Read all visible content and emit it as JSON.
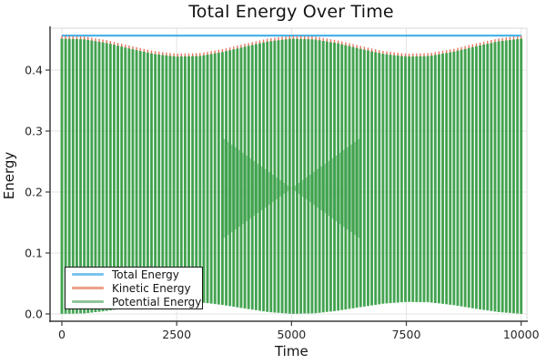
{
  "chart": {
    "title": "Total Energy Over Time",
    "xlabel": "Time",
    "ylabel": "Energy"
  },
  "legend": {
    "items": [
      {
        "label": "Total Energy",
        "color": "#7cc3ee"
      },
      {
        "label": "Kinetic Energy",
        "color": "#eda186"
      },
      {
        "label": "Potential Energy",
        "color": "#90c59a"
      }
    ]
  },
  "axes": {
    "x_ticks": [
      0,
      2500,
      5000,
      7500,
      10000
    ],
    "y_ticks": [
      0.0,
      0.1,
      0.2,
      0.3,
      0.4
    ],
    "xlim": [
      0,
      10000
    ],
    "ylim": [
      -0.015,
      0.469
    ]
  },
  "chart_data": {
    "type": "line",
    "title": "Total Energy Over Time",
    "xlabel": "Time",
    "ylabel": "Energy",
    "x_range": [
      0,
      10000
    ],
    "ylim": [
      0,
      0.47
    ],
    "grid": true,
    "legend_position": "lower-left",
    "beat_period": 5000,
    "series": [
      {
        "name": "Total Energy",
        "color": "#3fafe8",
        "style": "constant-line",
        "value": 0.4565
      },
      {
        "name": "Kinetic Energy",
        "color": "#d96245",
        "style": "fast-oscillation",
        "description": "Oscillates rapidly between envelope_bottom and envelope_top; aliasing renders it as dense vertical strokes with red tips visible at the top envelope."
      },
      {
        "name": "Potential Energy",
        "color": "#3ba24c",
        "style": "fast-oscillation",
        "description": "Antiphase with kinetic energy; drawn on top so the body of the band reads green with red showing through between strokes."
      }
    ],
    "envelope_t": [
      0,
      500,
      1000,
      1500,
      2000,
      2500,
      3000,
      3500,
      4000,
      4500,
      5000,
      5500,
      6000,
      6500,
      7000,
      7500,
      8000,
      8500,
      9000,
      9500,
      10000
    ],
    "envelope_top": [
      0.4562,
      0.4551,
      0.4487,
      0.4396,
      0.4312,
      0.4268,
      0.4278,
      0.4343,
      0.4434,
      0.4518,
      0.4562,
      0.4551,
      0.4487,
      0.4396,
      0.4312,
      0.4268,
      0.4278,
      0.4343,
      0.4434,
      0.4518,
      0.4562
    ],
    "envelope_bottom": [
      0.0002,
      0.001,
      0.0052,
      0.0112,
      0.0169,
      0.0198,
      0.0191,
      0.0148,
      0.0087,
      0.0031,
      0.0002,
      0.001,
      0.0052,
      0.0112,
      0.0169,
      0.0198,
      0.0191,
      0.0148,
      0.0087,
      0.0031,
      0.0002
    ],
    "visual": {
      "stripe_count": 124,
      "red_tip_offset": 0.0048,
      "red_bottom_offset": 0.0035
    }
  }
}
